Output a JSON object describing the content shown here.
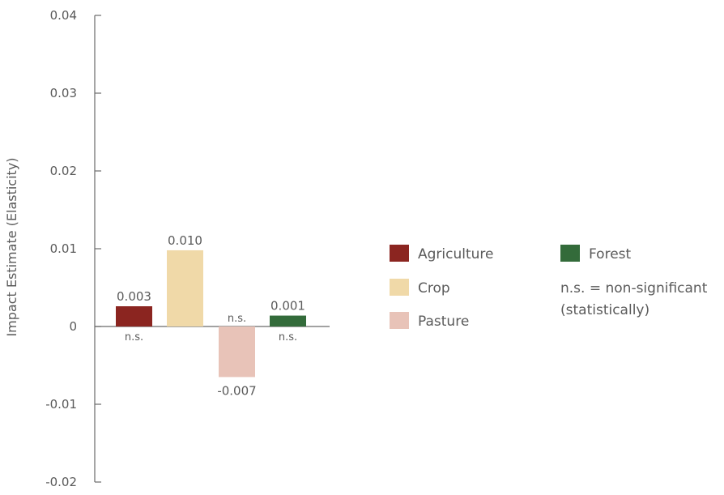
{
  "chart_data": {
    "type": "bar",
    "title": "",
    "xlabel": "",
    "ylabel": "Impact Estimate (Elasticity)",
    "ylim": [
      -0.02,
      0.04
    ],
    "yticks": [
      "0.04",
      "0.03",
      "0.02",
      "0.01",
      "0",
      "-0.01",
      "-0.02"
    ],
    "ytick_values": [
      0.04,
      0.03,
      0.02,
      0.01,
      0,
      -0.01,
      -0.02
    ],
    "grid": false,
    "legend_position": "right",
    "categories": [
      "Agriculture",
      "Crop",
      "Pasture",
      "Forest"
    ],
    "values": [
      0.0026,
      0.0098,
      -0.0065,
      0.0014
    ],
    "value_labels": [
      "0.003",
      "0.010",
      "-0.007",
      "0.001"
    ],
    "significance_labels": [
      "n.s.",
      "",
      "n.s.",
      "n.s."
    ],
    "colors": [
      "#8b2520",
      "#f0d9a8",
      "#e8c3b8",
      "#336b3a"
    ],
    "legend": {
      "items": [
        {
          "label": "Agriculture",
          "color": "#8b2520"
        },
        {
          "label": "Crop",
          "color": "#f0d9a8"
        },
        {
          "label": "Pasture",
          "color": "#e8c3b8"
        },
        {
          "label": "Forest",
          "color": "#336b3a"
        }
      ],
      "note_line1": "n.s. = non-significant",
      "note_line2": "(statistically)"
    }
  }
}
